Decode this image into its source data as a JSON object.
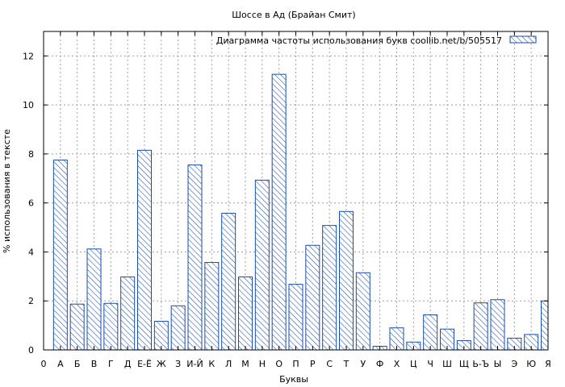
{
  "chart_data": {
    "type": "bar",
    "title": "Шоссе в Ад (Брайан Смит)",
    "xlabel": "Буквы",
    "ylabel": "% использования в тексте",
    "ylim": [
      0,
      13
    ],
    "yticks": [
      0,
      2,
      4,
      6,
      8,
      10,
      12
    ],
    "grid": true,
    "legend_position": "top-right",
    "legend_label": "Диаграмма частоты использования букв  coollib.net/b/505517",
    "categories": [
      "0",
      "А",
      "Б",
      "В",
      "Г",
      "Д",
      "Е-Ё",
      "Ж",
      "З",
      "И-Й",
      "К",
      "Л",
      "М",
      "Н",
      "О",
      "П",
      "Р",
      "С",
      "Т",
      "У",
      "Ф",
      "Х",
      "Ц",
      "Ч",
      "Ш",
      "Щ",
      "Ь-Ъ",
      "Ы",
      "Э",
      "Ю",
      "Я"
    ],
    "values": [
      0,
      7.75,
      1.87,
      4.12,
      1.9,
      2.98,
      8.15,
      1.17,
      1.8,
      7.55,
      3.57,
      5.58,
      2.98,
      6.93,
      11.25,
      2.68,
      4.27,
      5.08,
      5.65,
      3.15,
      0.15,
      0.9,
      0.32,
      1.43,
      0.85,
      0.38,
      1.92,
      2.05,
      0.48,
      0.63,
      2.0
    ],
    "colors": {
      "bar_stroke": "#1a4ea8",
      "hatch": "#1a4ea8",
      "grid": "#a0a0a0"
    }
  }
}
